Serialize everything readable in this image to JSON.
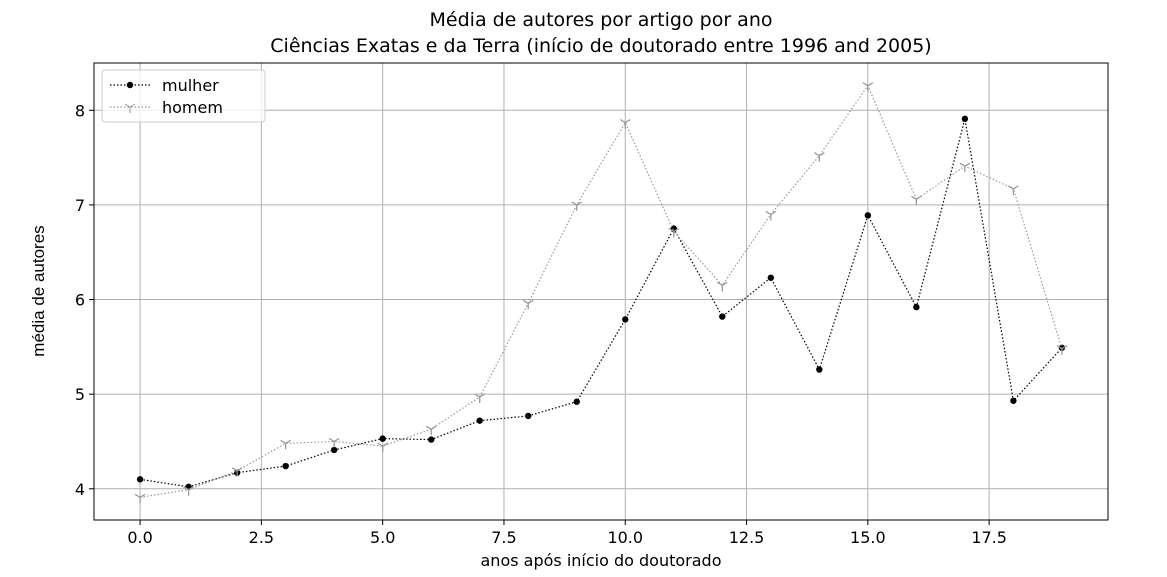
{
  "chart_data": {
    "type": "line",
    "title": "Média de autores por artigo por ano",
    "subtitle": "Ciências Exatas e da Terra (início de doutorado entre 1996 and 2005)",
    "x_label": "anos após início do doutorado",
    "y_label": "média de autores",
    "x": [
      0,
      1,
      2,
      3,
      4,
      5,
      6,
      7,
      8,
      9,
      10,
      11,
      12,
      13,
      14,
      15,
      16,
      17,
      18,
      19
    ],
    "series": [
      {
        "name": "mulher",
        "color": "#000000",
        "marker": "circle",
        "values": [
          4.1,
          4.02,
          4.17,
          4.24,
          4.41,
          4.53,
          4.52,
          4.72,
          4.77,
          4.92,
          5.79,
          6.75,
          5.82,
          6.23,
          5.26,
          6.89,
          5.92,
          7.91,
          4.93,
          5.49
        ]
      },
      {
        "name": "homem",
        "color": "#999999",
        "marker": "tri_down",
        "values": [
          3.91,
          3.99,
          4.19,
          4.48,
          4.5,
          4.45,
          4.63,
          4.97,
          5.96,
          7.0,
          7.87,
          6.72,
          6.15,
          6.9,
          7.52,
          8.26,
          7.06,
          7.41,
          7.17,
          5.48
        ]
      }
    ],
    "xlim": [
      -0.95,
      19.95
    ],
    "ylim": [
      3.67,
      8.5
    ],
    "xticks": [
      {
        "value": 0,
        "label": "0.0"
      },
      {
        "value": 2.5,
        "label": "2.5"
      },
      {
        "value": 5,
        "label": "5.0"
      },
      {
        "value": 7.5,
        "label": "7.5"
      },
      {
        "value": 10,
        "label": "10.0"
      },
      {
        "value": 12.5,
        "label": "12.5"
      },
      {
        "value": 15,
        "label": "15.0"
      },
      {
        "value": 17.5,
        "label": "17.5"
      }
    ],
    "yticks": [
      4,
      5,
      6,
      7,
      8
    ],
    "grid": true,
    "legend": "upper-left"
  }
}
